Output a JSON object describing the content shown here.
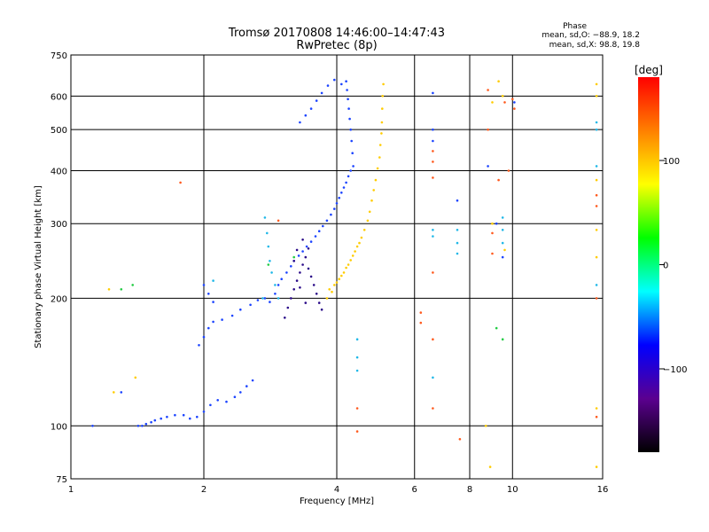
{
  "chart_data": {
    "type": "scatter",
    "title": "Tromsø 20170808 14:46:00–14:47:43",
    "subtitle": "RwPretec (8p)",
    "phase_info": {
      "title": "Phase",
      "line_o": "mean, sd,O: −88.9, 18.2",
      "line_x": "mean, sd,X:  98.8, 19.8"
    },
    "xlabel": "Frequency [MHz]",
    "ylabel": "Stationary phase Virtual Height [km]",
    "x_scale": "log",
    "y_scale": "log",
    "xlim": [
      1,
      16
    ],
    "ylim": [
      75,
      750
    ],
    "x_ticks": [
      1,
      2,
      4,
      6,
      8,
      10,
      16
    ],
    "x_tick_labels": [
      "1",
      "2",
      "4",
      "6",
      "8",
      "10",
      "16"
    ],
    "y_ticks": [
      75,
      100,
      200,
      300,
      400,
      500,
      600,
      750
    ],
    "y_tick_labels": [
      "75",
      "100",
      "200",
      "300",
      "400",
      "500",
      "600",
      "750"
    ],
    "grid": true,
    "colorbar": {
      "label": "[deg]",
      "range": [
        -180,
        180
      ],
      "ticks": [
        100,
        0,
        -100
      ],
      "tick_labels": [
        "100",
        "0",
        "−100"
      ]
    },
    "series": [
      {
        "values": [
          [
            1.42,
            100
          ],
          [
            1.45,
            100
          ],
          [
            1.48,
            101
          ],
          [
            1.52,
            102
          ],
          [
            1.55,
            103
          ],
          [
            1.6,
            104
          ],
          [
            1.65,
            105
          ],
          [
            1.72,
            106
          ],
          [
            1.8,
            106
          ],
          [
            1.86,
            104
          ],
          [
            1.93,
            105
          ],
          [
            2.0,
            108
          ],
          [
            2.07,
            112
          ],
          [
            2.15,
            115
          ],
          [
            2.25,
            114
          ],
          [
            2.35,
            117
          ],
          [
            2.42,
            120
          ],
          [
            2.5,
            124
          ],
          [
            2.58,
            128
          ],
          [
            1.95,
            155
          ],
          [
            2.0,
            162
          ],
          [
            2.05,
            170
          ],
          [
            2.1,
            176
          ],
          [
            2.2,
            178
          ],
          [
            2.32,
            182
          ],
          [
            2.42,
            188
          ],
          [
            2.55,
            193
          ],
          [
            2.65,
            198
          ],
          [
            2.75,
            200
          ],
          [
            2.82,
            196
          ],
          [
            2.9,
            205
          ],
          [
            2.95,
            215
          ],
          [
            3.0,
            222
          ],
          [
            3.08,
            230
          ],
          [
            3.15,
            238
          ],
          [
            3.2,
            245
          ],
          [
            3.28,
            252
          ],
          [
            3.35,
            258
          ],
          [
            3.42,
            265
          ],
          [
            3.5,
            272
          ],
          [
            3.58,
            280
          ],
          [
            3.65,
            288
          ],
          [
            3.72,
            296
          ],
          [
            3.8,
            305
          ],
          [
            3.88,
            315
          ],
          [
            3.95,
            325
          ],
          [
            4.0,
            335
          ],
          [
            4.05,
            345
          ],
          [
            4.1,
            355
          ],
          [
            4.15,
            365
          ],
          [
            4.2,
            375
          ],
          [
            4.25,
            388
          ],
          [
            4.3,
            400
          ],
          [
            3.3,
            520
          ],
          [
            3.4,
            540
          ],
          [
            3.5,
            560
          ],
          [
            3.6,
            585
          ],
          [
            3.7,
            610
          ],
          [
            3.82,
            635
          ],
          [
            3.95,
            655
          ],
          [
            4.1,
            640
          ],
          [
            4.2,
            650
          ],
          [
            4.22,
            620
          ],
          [
            4.24,
            590
          ],
          [
            4.26,
            560
          ],
          [
            4.28,
            530
          ],
          [
            4.3,
            500
          ],
          [
            4.32,
            470
          ],
          [
            4.34,
            440
          ],
          [
            4.36,
            410
          ],
          [
            2.0,
            215
          ],
          [
            2.05,
            205
          ],
          [
            2.1,
            196
          ],
          [
            1.12,
            100
          ],
          [
            1.3,
            120
          ],
          [
            6.6,
            610
          ],
          [
            6.6,
            500
          ],
          [
            6.6,
            470
          ],
          [
            7.5,
            340
          ],
          [
            8.8,
            410
          ],
          [
            9.2,
            300
          ],
          [
            9.5,
            250
          ],
          [
            10.1,
            580
          ]
        ]
      },
      {
        "values": [
          [
            3.05,
            180
          ],
          [
            3.1,
            190
          ],
          [
            3.15,
            200
          ],
          [
            3.2,
            210
          ],
          [
            3.25,
            220
          ],
          [
            3.3,
            230
          ],
          [
            3.35,
            240
          ],
          [
            3.4,
            250
          ],
          [
            3.45,
            235
          ],
          [
            3.5,
            225
          ],
          [
            3.55,
            215
          ],
          [
            3.6,
            205
          ],
          [
            3.65,
            195
          ],
          [
            3.7,
            188
          ],
          [
            3.25,
            260
          ],
          [
            3.35,
            275
          ],
          [
            3.45,
            262
          ],
          [
            3.2,
            245
          ],
          [
            3.3,
            212
          ],
          [
            3.4,
            195
          ]
        ]
      },
      {
        "values": [
          [
            2.75,
            310
          ],
          [
            2.78,
            285
          ],
          [
            2.8,
            265
          ],
          [
            2.82,
            245
          ],
          [
            2.85,
            230
          ],
          [
            2.9,
            215
          ],
          [
            2.72,
            200
          ],
          [
            2.95,
            200
          ],
          [
            2.1,
            220
          ],
          [
            4.45,
            160
          ],
          [
            4.45,
            145
          ],
          [
            4.45,
            135
          ],
          [
            6.6,
            290
          ],
          [
            6.6,
            280
          ],
          [
            6.6,
            130
          ],
          [
            7.5,
            290
          ],
          [
            7.5,
            270
          ],
          [
            7.5,
            255
          ],
          [
            9.5,
            310
          ],
          [
            9.5,
            290
          ],
          [
            9.5,
            270
          ],
          [
            15.5,
            520
          ],
          [
            15.5,
            500
          ],
          [
            15.5,
            410
          ],
          [
            15.5,
            215
          ]
        ]
      },
      {
        "values": [
          [
            3.85,
            210
          ],
          [
            3.95,
            215
          ],
          [
            4.05,
            222
          ],
          [
            4.15,
            230
          ],
          [
            4.25,
            240
          ],
          [
            4.35,
            252
          ],
          [
            4.45,
            265
          ],
          [
            4.55,
            278
          ],
          [
            4.62,
            290
          ],
          [
            4.7,
            305
          ],
          [
            4.75,
            320
          ],
          [
            4.8,
            340
          ],
          [
            4.85,
            360
          ],
          [
            4.9,
            380
          ],
          [
            4.95,
            405
          ],
          [
            5.0,
            430
          ],
          [
            5.02,
            460
          ],
          [
            5.05,
            490
          ],
          [
            5.06,
            520
          ],
          [
            5.07,
            560
          ],
          [
            5.08,
            600
          ],
          [
            5.1,
            640
          ],
          [
            3.8,
            200
          ],
          [
            3.9,
            207
          ],
          [
            4.0,
            218
          ],
          [
            4.1,
            226
          ],
          [
            4.2,
            236
          ],
          [
            4.3,
            246
          ],
          [
            4.4,
            258
          ],
          [
            4.5,
            270
          ],
          [
            1.25,
            120
          ],
          [
            1.4,
            130
          ],
          [
            1.22,
            210
          ],
          [
            8.7,
            100
          ],
          [
            8.9,
            80
          ],
          [
            9.0,
            580
          ],
          [
            9.0,
            300
          ],
          [
            9.3,
            650
          ],
          [
            9.5,
            600
          ],
          [
            9.6,
            260
          ],
          [
            15.5,
            600
          ],
          [
            15.5,
            640
          ],
          [
            15.5,
            380
          ],
          [
            15.5,
            290
          ],
          [
            15.5,
            250
          ],
          [
            15.5,
            110
          ],
          [
            15.5,
            80
          ]
        ]
      },
      {
        "values": [
          [
            1.38,
            215
          ],
          [
            1.3,
            210
          ],
          [
            2.8,
            240
          ],
          [
            3.2,
            250
          ],
          [
            9.2,
            170
          ],
          [
            9.5,
            160
          ]
        ]
      },
      {
        "values": [
          [
            1.77,
            375
          ],
          [
            2.95,
            305
          ],
          [
            4.45,
            110
          ],
          [
            4.45,
            97
          ],
          [
            6.2,
            185
          ],
          [
            6.2,
            175
          ],
          [
            6.6,
            445
          ],
          [
            6.6,
            420
          ],
          [
            6.6,
            385
          ],
          [
            6.6,
            230
          ],
          [
            6.6,
            160
          ],
          [
            6.6,
            110
          ],
          [
            7.6,
            93
          ],
          [
            8.8,
            620
          ],
          [
            8.8,
            500
          ],
          [
            9.0,
            285
          ],
          [
            9.0,
            255
          ],
          [
            9.3,
            380
          ],
          [
            9.6,
            580
          ],
          [
            9.8,
            400
          ],
          [
            10.0,
            590
          ],
          [
            10.1,
            560
          ],
          [
            15.5,
            350
          ],
          [
            15.5,
            330
          ],
          [
            15.5,
            200
          ],
          [
            15.5,
            105
          ]
        ]
      }
    ]
  },
  "colors": {
    "series": [
      "#1c44ff",
      "#2a0a88",
      "#20b8e8",
      "#ffcc00",
      "#22cc44",
      "#ff5a1e"
    ],
    "grid": "#000000",
    "colorbar_stops": [
      "#000000",
      "#5b0090",
      "#0000ff",
      "#00ffff",
      "#00ff00",
      "#ffff00",
      "#ff8000",
      "#ff0000"
    ]
  }
}
